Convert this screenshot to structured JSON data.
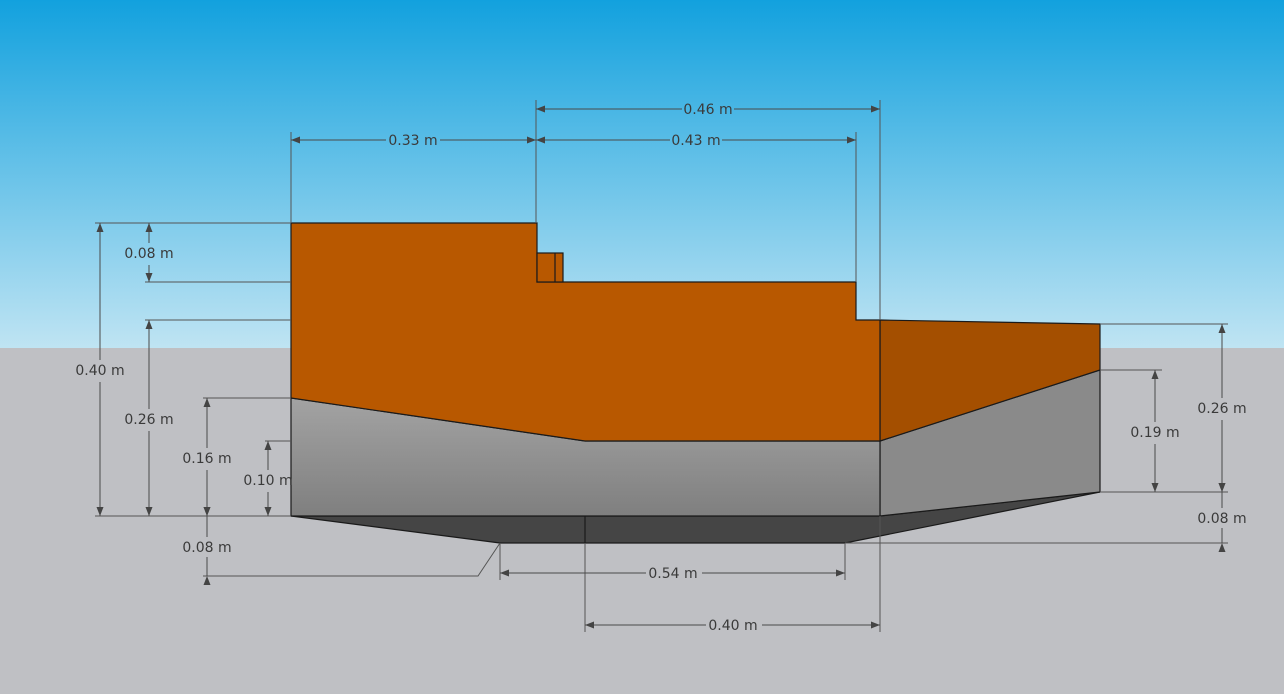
{
  "colors": {
    "sky_top": "#12a1de",
    "sky_bottom": "#bfe4f3",
    "ground": "#bfc0c4",
    "orange_front": "#b85800",
    "orange_side": "#a44f00",
    "gray_front_top": "#a3a3a3",
    "gray_front_bottom": "#7f7f7f",
    "gray_side": "#8a8a8a",
    "gray_bottom": "#454545"
  },
  "dimensions": {
    "top_left_width": "0.33 m",
    "top_overall_width": "0.46 m",
    "top_mid_width": "0.43 m",
    "left_step_height": "0.08 m",
    "left_total_height": "0.40 m",
    "left_mid_height": "0.26 m",
    "left_gray_height": "0.16 m",
    "left_small_height": "0.10 m",
    "left_bottom_offset": "0.08 m",
    "bottom_inner_width": "0.54 m",
    "bottom_outer_width": "0.40 m",
    "right_total_height": "0.26 m",
    "right_gray_height": "0.19 m",
    "right_bottom_offset": "0.08 m"
  }
}
